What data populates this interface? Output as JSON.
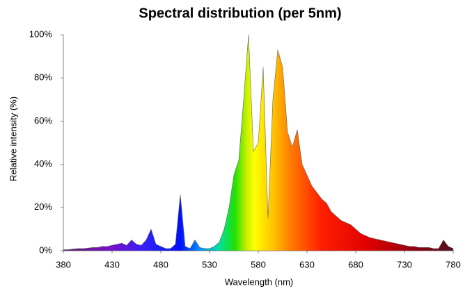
{
  "chart_data": {
    "type": "area",
    "title": "Spectral distribution (per 5nm)",
    "x_label": "Wavelength (nm)",
    "y_label": "Relative intensity (%)",
    "x": [
      380,
      385,
      390,
      395,
      400,
      405,
      410,
      415,
      420,
      425,
      430,
      435,
      440,
      445,
      450,
      455,
      460,
      465,
      470,
      475,
      480,
      485,
      490,
      495,
      500,
      505,
      510,
      515,
      520,
      525,
      530,
      535,
      540,
      545,
      550,
      555,
      560,
      565,
      570,
      575,
      580,
      585,
      590,
      595,
      600,
      605,
      610,
      615,
      620,
      625,
      630,
      635,
      640,
      645,
      650,
      655,
      660,
      665,
      670,
      675,
      680,
      685,
      690,
      695,
      700,
      705,
      710,
      715,
      720,
      725,
      730,
      735,
      740,
      745,
      750,
      755,
      760,
      765,
      770,
      775,
      780
    ],
    "values": [
      0.5,
      0.5,
      0.8,
      1,
      1,
      1.2,
      1.5,
      1.5,
      2,
      2,
      2.5,
      3,
      3.5,
      2.5,
      5,
      3,
      2.5,
      5,
      10,
      3,
      2,
      1,
      1,
      3,
      26,
      2,
      1,
      5,
      1.5,
      1,
      1,
      2,
      4,
      10,
      20,
      35,
      42,
      70,
      100,
      46,
      50,
      85,
      15,
      70,
      93,
      85,
      55,
      48,
      56,
      40,
      35,
      30,
      27,
      24,
      22,
      18,
      16,
      14,
      13,
      12,
      10,
      8,
      7,
      6,
      5.5,
      5,
      4.5,
      4,
      3.5,
      3,
      2.5,
      2,
      2,
      1.5,
      1.5,
      1.5,
      1,
      1,
      5,
      2,
      1
    ],
    "xlim": [
      380,
      780
    ],
    "ylim": [
      0,
      100
    ],
    "xticks": [
      380,
      430,
      480,
      530,
      580,
      630,
      680,
      730,
      780
    ],
    "yticks": [
      {
        "value": 0,
        "label": "0%"
      },
      {
        "value": 20,
        "label": "20%"
      },
      {
        "value": 40,
        "label": "40%"
      },
      {
        "value": 60,
        "label": "60%"
      },
      {
        "value": 80,
        "label": "80%"
      },
      {
        "value": 100,
        "label": "100%"
      }
    ]
  }
}
